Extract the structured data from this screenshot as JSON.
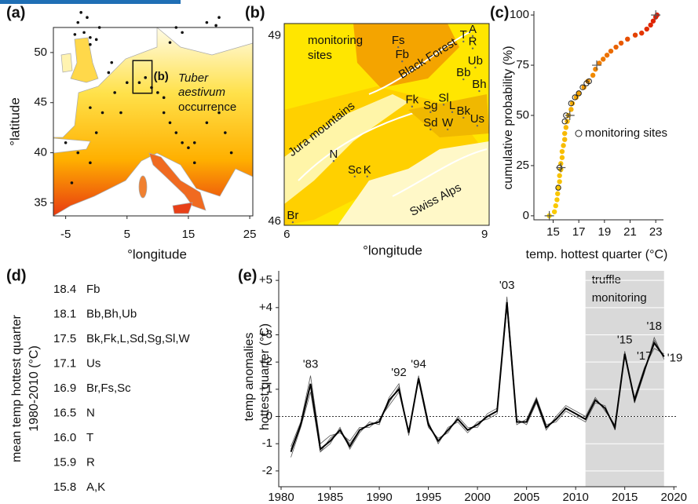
{
  "chart_data": [
    {
      "type": "map",
      "panel_label": "(a)",
      "xlabel": "°longitude",
      "ylabel": "°latitude",
      "species": "Tuber",
      "species2": "aestivum",
      "annotation": "occurrence",
      "inset_label": "(b)",
      "xlim": [
        -7,
        25.5
      ],
      "ylim": [
        33.7,
        52.5
      ],
      "xticks": [
        -5,
        5,
        15,
        25
      ],
      "yticks": [
        35,
        40,
        45,
        50
      ],
      "color": "#111111",
      "x": [
        -2,
        -1,
        0,
        -3,
        -1.5,
        -2.5,
        0.5,
        -1,
        -3.5,
        13,
        14,
        12,
        18,
        20,
        19.5,
        2,
        3,
        1,
        4,
        -1,
        5,
        2.5,
        7,
        8,
        9,
        10,
        11,
        12,
        13,
        14,
        15,
        16,
        11,
        16,
        -3,
        -4,
        -1,
        -5,
        0,
        18,
        21,
        22,
        20
      ],
      "y": [
        52,
        51.5,
        51.3,
        53,
        53.5,
        54,
        52.5,
        50.8,
        51.8,
        52.5,
        52,
        51,
        53,
        53.5,
        52.7,
        48,
        46,
        44,
        44,
        44.5,
        47,
        49,
        47,
        47.5,
        46.5,
        46,
        45.5,
        43,
        42,
        41,
        40.5,
        41,
        44,
        39,
        40,
        37,
        39,
        41,
        42,
        43,
        42,
        40,
        44
      ]
    },
    {
      "type": "map",
      "panel_label": "(b)",
      "xlabel": "°longitude",
      "xlim": [
        5.96,
        9.07
      ],
      "ylim": [
        45.94,
        49.2
      ],
      "xticks": [
        6,
        9
      ],
      "yticks": [
        46,
        49
      ],
      "annotation": [
        "monitoring",
        "sites"
      ],
      "regions": [
        "Black Forest",
        "Jura mountains",
        "Swiss Alps"
      ],
      "sites": [
        {
          "name": "Fs",
          "x": 7.69,
          "y": 48.92
        },
        {
          "name": "Fb",
          "x": 7.75,
          "y": 48.69
        },
        {
          "name": "T",
          "x": 8.68,
          "y": 49.01
        },
        {
          "name": "A",
          "x": 8.82,
          "y": 49.1
        },
        {
          "name": "R",
          "x": 8.82,
          "y": 48.9
        },
        {
          "name": "Ub",
          "x": 8.86,
          "y": 48.59
        },
        {
          "name": "Bb",
          "x": 8.68,
          "y": 48.4
        },
        {
          "name": "Bh",
          "x": 8.92,
          "y": 48.21
        },
        {
          "name": "Fk",
          "x": 7.9,
          "y": 47.96
        },
        {
          "name": "Sg",
          "x": 8.18,
          "y": 47.87
        },
        {
          "name": "Sl",
          "x": 8.38,
          "y": 47.99
        },
        {
          "name": "L",
          "x": 8.51,
          "y": 47.87
        },
        {
          "name": "Bk",
          "x": 8.68,
          "y": 47.78
        },
        {
          "name": "Sd",
          "x": 8.18,
          "y": 47.59
        },
        {
          "name": "W",
          "x": 8.44,
          "y": 47.59
        },
        {
          "name": "Us",
          "x": 8.89,
          "y": 47.65
        },
        {
          "name": "N",
          "x": 6.71,
          "y": 47.08
        },
        {
          "name": "Sc",
          "x": 7.03,
          "y": 46.83
        },
        {
          "name": "K",
          "x": 7.22,
          "y": 46.83
        },
        {
          "name": "Br",
          "x": 6.09,
          "y": 46.09
        }
      ]
    },
    {
      "type": "scatter",
      "panel_label": "(c)",
      "xlabel": "temp. hottest quarter (°C)",
      "ylabel": "cumulative probability (%)",
      "xlim": [
        13.5,
        23.6
      ],
      "ylim": [
        -2,
        102
      ],
      "xticks": [
        15,
        17,
        19,
        21,
        23
      ],
      "yticks": [
        0,
        25,
        50,
        75,
        100
      ],
      "color_range": [
        "#ffee00",
        "#dd1100"
      ],
      "x": [
        14.7,
        15.1,
        15.2,
        15.3,
        15.35,
        15.4,
        15.5,
        15.5,
        15.6,
        15.6,
        15.7,
        15.7,
        15.8,
        15.9,
        15.9,
        16.0,
        16.1,
        16.2,
        16.4,
        16.5,
        16.8,
        17.0,
        17.4,
        17.7,
        18.1,
        18.3,
        18.6,
        18.9,
        19.2,
        19.5,
        19.9,
        20.3,
        20.8,
        21.4,
        21.9,
        22.3,
        22.6,
        22.8,
        23.0,
        23.1
      ],
      "y": [
        0,
        2,
        5,
        8,
        11,
        14,
        17,
        20,
        23,
        26,
        29,
        32,
        35,
        38,
        41,
        44,
        47,
        50,
        53,
        56,
        59,
        61,
        64,
        67,
        70,
        73,
        76,
        78,
        80,
        82,
        84,
        86,
        88,
        90,
        91,
        93,
        95,
        97,
        99,
        100
      ],
      "sites": {
        "name": "monitoring sites",
        "x": [
          15.4,
          15.5,
          15.9,
          16.0,
          16.4,
          16.7,
          17.0,
          17.3,
          17.6,
          17.8
        ],
        "y": [
          14,
          24,
          47,
          50,
          56,
          59,
          61,
          64,
          66,
          67
        ]
      },
      "quantiles": {
        "x": [
          14.7,
          15.6,
          16.3,
          18.4,
          23.0
        ],
        "y": [
          0,
          24,
          50,
          75,
          100
        ]
      }
    },
    {
      "type": "table",
      "panel_label": "(d)",
      "ylabel": [
        "mean temp hottest quarter",
        "1980-2010 (°C)"
      ],
      "rows": [
        [
          "18.4",
          "Fb"
        ],
        [
          "18.1",
          "Bb,Bh,Ub"
        ],
        [
          "17.5",
          "Bk,Fk,L,Sd,Sg,Sl,W"
        ],
        [
          "17.1",
          "Us"
        ],
        [
          "16.9",
          "Br,Fs,Sc"
        ],
        [
          "16.5",
          "N"
        ],
        [
          "16.0",
          "T"
        ],
        [
          "15.9",
          "R"
        ],
        [
          "15.8",
          "A,K"
        ]
      ]
    },
    {
      "type": "line",
      "panel_label": "(e)",
      "ylabel": [
        "temp  anomalies",
        "hottest quarter  (°C)"
      ],
      "xlim": [
        1979.76,
        2020.3
      ],
      "ylim": [
        -2.58,
        5.35
      ],
      "xticks": [
        1980,
        1985,
        1990,
        1995,
        2000,
        2005,
        2010,
        2015,
        2020
      ],
      "yticks": [
        -2,
        -1,
        0,
        {
          "value": 1,
          "label": "+1"
        },
        {
          "value": 2,
          "label": "+2"
        },
        {
          "value": 3,
          "label": "+3"
        },
        {
          "value": 4,
          "label": "+4"
        },
        {
          "value": 5,
          "label": "+5"
        }
      ],
      "reference_line": 0,
      "highlight": {
        "x": [
          2011,
          2019
        ],
        "label": [
          "truffle",
          "monitoring"
        ],
        "color": "#d9d9d9"
      },
      "x": [
        1981,
        1982,
        1983,
        1984,
        1985,
        1986,
        1987,
        1988,
        1989,
        1990,
        1991,
        1992,
        1993,
        1994,
        1995,
        1996,
        1997,
        1998,
        1999,
        2000,
        2001,
        2002,
        2003,
        2004,
        2005,
        2006,
        2007,
        2008,
        2009,
        2010,
        2011,
        2012,
        2013,
        2014,
        2015,
        2016,
        2017,
        2018,
        2019
      ],
      "series": [
        {
          "color": "#555555",
          "values": [
            -1.1,
            -0.2,
            1.5,
            -1.0,
            -0.7,
            -0.6,
            -0.9,
            -0.4,
            -0.4,
            -0.1,
            0.4,
            0.9,
            -0.5,
            1.3,
            -0.4,
            -0.8,
            -0.6,
            0.0,
            -0.4,
            -0.4,
            0.1,
            0.3,
            4.0,
            -0.3,
            -0.1,
            0.7,
            -0.3,
            -0.2,
            0.2,
            0.0,
            -0.2,
            0.5,
            0.4,
            -0.5,
            2.4,
            0.5,
            1.6,
            2.9,
            2.1
          ]
        },
        {
          "color": "#555555",
          "values": [
            -1.5,
            -0.4,
            0.9,
            -1.3,
            -1.0,
            -0.4,
            -1.2,
            -0.6,
            -0.2,
            -0.3,
            0.7,
            1.2,
            -0.7,
            1.5,
            -0.2,
            -1.0,
            -0.4,
            -0.2,
            -0.6,
            -0.2,
            -0.1,
            0.1,
            4.4,
            -0.1,
            -0.3,
            0.5,
            -0.5,
            0.0,
            0.4,
            0.2,
            0.0,
            0.7,
            0.2,
            -0.3,
            2.2,
            0.7,
            1.8,
            2.5,
            2.3
          ]
        },
        {
          "color": "#555555",
          "values": [
            -1.2,
            -0.3,
            1.1,
            -1.3,
            -0.8,
            -0.5,
            -1.0,
            -0.5,
            -0.3,
            -0.2,
            0.5,
            1.1,
            -0.6,
            1.4,
            -0.3,
            -0.9,
            -0.5,
            -0.1,
            -0.5,
            -0.3,
            0.0,
            0.2,
            4.1,
            -0.2,
            -0.2,
            0.6,
            -0.4,
            -0.1,
            0.3,
            0.1,
            -0.1,
            0.6,
            0.3,
            -0.4,
            2.3,
            0.6,
            1.7,
            2.8,
            2.2
          ]
        },
        {
          "color": "#000000",
          "values": [
            -1.3,
            -0.3,
            1.2,
            -1.2,
            -0.9,
            -0.5,
            -1.1,
            -0.5,
            -0.3,
            -0.2,
            0.6,
            1.0,
            -0.6,
            1.4,
            -0.3,
            -0.9,
            -0.5,
            -0.1,
            -0.5,
            -0.3,
            0.0,
            0.2,
            4.2,
            -0.2,
            -0.2,
            0.6,
            -0.4,
            -0.1,
            0.3,
            0.1,
            -0.1,
            0.6,
            0.3,
            -0.4,
            2.3,
            0.6,
            1.7,
            2.7,
            2.2
          ]
        }
      ],
      "annotations": [
        {
          "text": "'83",
          "x": 1983
        },
        {
          "text": "'92",
          "x": 1992
        },
        {
          "text": "'94",
          "x": 1994
        },
        {
          "text": "'03",
          "x": 2003
        },
        {
          "text": "'15",
          "x": 2015
        },
        {
          "text": "'17",
          "x": 2017
        },
        {
          "text": "'18",
          "x": 2018
        },
        {
          "text": "'19",
          "x": 2019
        }
      ]
    }
  ]
}
